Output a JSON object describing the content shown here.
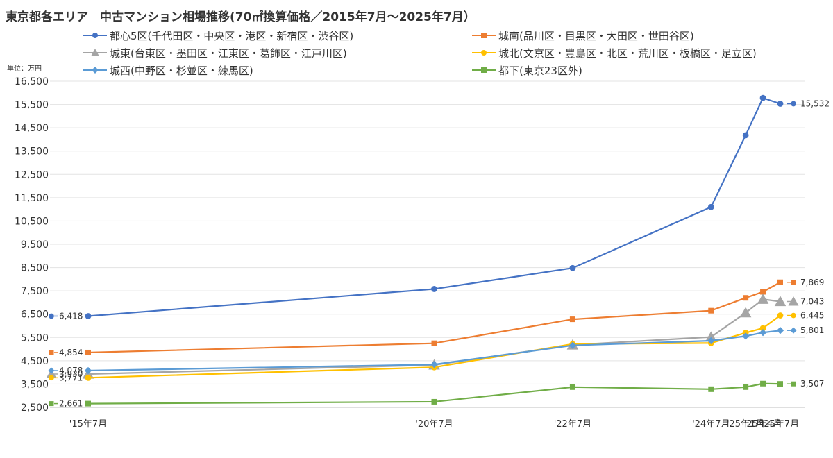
{
  "title": "東京都各エリア　中古マンション相場推移(70㎡換算価格／2015年7月～2025年7月）",
  "unit_label": "単位：万円",
  "chart_data": {
    "type": "line",
    "categories": [
      "'15年7月",
      "'20年7月",
      "'22年7月",
      "'24年7月",
      "'25年1月",
      "'25年4月",
      "'25年7月"
    ],
    "x_positions": [
      0,
      5,
      7,
      9,
      9.5,
      9.75,
      10
    ],
    "ylim": [
      2500,
      16500
    ],
    "yticks": [
      "16,500",
      "15,500",
      "14,500",
      "13,500",
      "12,500",
      "11,500",
      "10,500",
      "9,500",
      "8,500",
      "7,500",
      "6,500",
      "5,500",
      "4,500",
      "3,500",
      "2,500"
    ],
    "ytick_values": [
      16500,
      15500,
      14500,
      13500,
      12500,
      11500,
      10500,
      9500,
      8500,
      7500,
      6500,
      5500,
      4500,
      3500,
      2500
    ],
    "grid": true,
    "legend_position": "top",
    "series": [
      {
        "name": "都心5区(千代田区・中央区・港区・新宿区・渋谷区)",
        "color": "#4472C4",
        "marker": "circle",
        "values": [
          6418,
          7580,
          8480,
          11100,
          14180,
          15780,
          15532
        ],
        "start_label": "6,418",
        "end_label": "15,532"
      },
      {
        "name": "城南(品川区・目黒区・大田区・世田谷区)",
        "color": "#ED7D31",
        "marker": "square",
        "values": [
          4854,
          5250,
          6280,
          6650,
          7200,
          7460,
          7869
        ],
        "start_label": "4,854",
        "end_label": "7,869"
      },
      {
        "name": "城東(台東区・墨田区・江東区・葛飾区・江戸川区)",
        "color": "#A5A5A5",
        "marker": "triangle",
        "values": [
          3930,
          4320,
          5180,
          5520,
          6560,
          7140,
          7043
        ],
        "start_label": "3,930",
        "end_label": "7,043"
      },
      {
        "name": "城北(文京区・豊島区・北区・荒川区・板橋区・足立区)",
        "color": "#FFC000",
        "marker": "circle",
        "values": [
          3771,
          4220,
          5220,
          5260,
          5700,
          5900,
          6445
        ],
        "start_label": "3,771",
        "end_label": "6,445"
      },
      {
        "name": "城西(中野区・杉並区・練馬区)",
        "color": "#5B9BD5",
        "marker": "diamond",
        "values": [
          4078,
          4340,
          5160,
          5360,
          5560,
          5710,
          5801
        ],
        "start_label": "4,078",
        "end_label": "5,801"
      },
      {
        "name": "都下(東京23区外)",
        "color": "#70AD47",
        "marker": "square",
        "values": [
          2661,
          2740,
          3370,
          3280,
          3370,
          3520,
          3507
        ],
        "start_label": "2,661",
        "end_label": "3,507"
      }
    ]
  }
}
